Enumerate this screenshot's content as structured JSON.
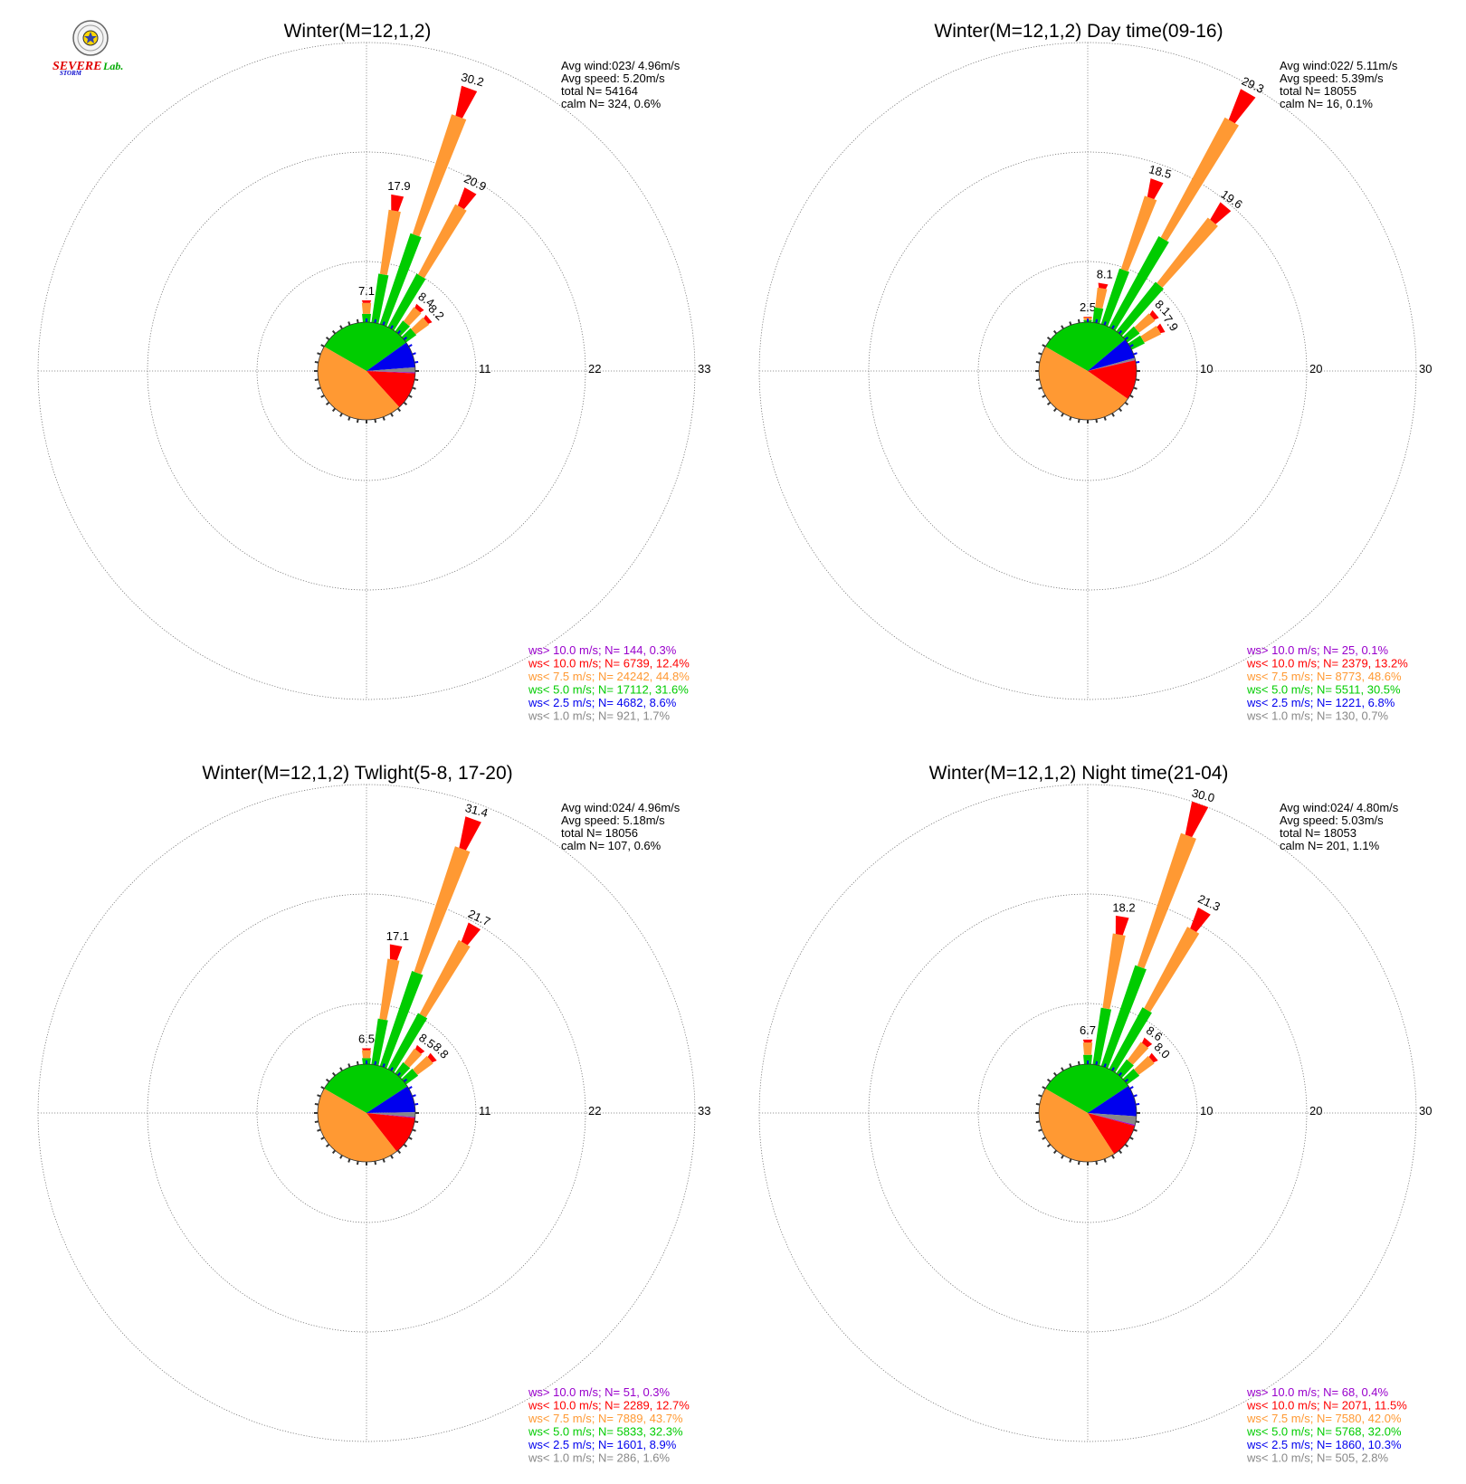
{
  "logo": {
    "word1": "SEVERE",
    "word2": "STORM",
    "word3": "Lab."
  },
  "colors": {
    "gt10": "#9900cc",
    "lt10": "#ff0000",
    "lt7_5": "#ff9933",
    "lt5": "#00cc00",
    "lt2_5": "#0000ee",
    "lt1": "#888888"
  },
  "chart_data": [
    {
      "type": "wind-rose",
      "title": "Winter(M=12,1,2)",
      "stats": [
        "Avg wind:023/ 4.96m/s",
        "Avg speed: 5.20m/s",
        "total N=      54164",
        "calm N=    324,   0.6%"
      ],
      "rings": [
        11,
        22,
        33
      ],
      "rlim": [
        0,
        33
      ],
      "bars": [
        {
          "dir": 0,
          "total": 7.1,
          "label": "7.1"
        },
        {
          "dir": 10,
          "total": 17.9,
          "label": "17.9"
        },
        {
          "dir": 20,
          "total": 30.2,
          "label": "30.2"
        },
        {
          "dir": 30,
          "total": 20.9,
          "label": "20.9"
        },
        {
          "dir": 40,
          "total": 8.4,
          "label": "8.4"
        },
        {
          "dir": 50,
          "total": 8.2,
          "label": "8.2"
        }
      ],
      "pie": [
        31.6,
        8.6,
        1.7,
        0.3,
        12.4,
        44.8
      ],
      "legend": [
        "ws> 10.0 m/s; N=   144,  0.3%",
        "ws< 10.0 m/s; N=  6739, 12.4%",
        "ws<  7.5 m/s; N= 24242, 44.8%",
        "ws<  5.0 m/s; N= 17112, 31.6%",
        "ws<  2.5 m/s; N=  4682,  8.6%",
        "ws<  1.0 m/s; N=   921,  1.7%"
      ]
    },
    {
      "type": "wind-rose",
      "title": "Winter(M=12,1,2) Day time(09-16)",
      "stats": [
        "Avg wind:022/ 5.11m/s",
        "Avg speed: 5.39m/s",
        "total N=      18055",
        "calm N=     16,   0.1%"
      ],
      "rings": [
        10,
        20,
        30
      ],
      "rlim": [
        0,
        30
      ],
      "bars": [
        {
          "dir": 0,
          "total": 2.5,
          "label": "2.5"
        },
        {
          "dir": 10,
          "total": 8.1,
          "label": "8.1"
        },
        {
          "dir": 20,
          "total": 18.5,
          "label": "18.5"
        },
        {
          "dir": 30,
          "total": 29.3,
          "label": "29.3"
        },
        {
          "dir": 40,
          "total": 19.6,
          "label": "19.6"
        },
        {
          "dir": 50,
          "total": 8.1,
          "label": "8.1"
        },
        {
          "dir": 60,
          "total": 7.9,
          "label": "7.9"
        }
      ],
      "pie": [
        30.5,
        6.8,
        0.7,
        0.1,
        13.2,
        48.6
      ],
      "legend": [
        "ws> 10.0 m/s; N=    25,  0.1%",
        "ws< 10.0 m/s; N=  2379, 13.2%",
        "ws<  7.5 m/s; N=  8773, 48.6%",
        "ws<  5.0 m/s; N=  5511, 30.5%",
        "ws<  2.5 m/s; N=  1221,  6.8%",
        "ws<  1.0 m/s; N=   130,  0.7%"
      ]
    },
    {
      "type": "wind-rose",
      "title": "Winter(M=12,1,2) Twlight(5-8, 17-20)",
      "stats": [
        "Avg wind:024/ 4.96m/s",
        "Avg speed: 5.18m/s",
        "total N=      18056",
        "calm N=    107,   0.6%"
      ],
      "rings": [
        11,
        22,
        33
      ],
      "rlim": [
        0,
        33
      ],
      "bars": [
        {
          "dir": 0,
          "total": 6.5,
          "label": "6.5"
        },
        {
          "dir": 10,
          "total": 17.1,
          "label": "17.1"
        },
        {
          "dir": 20,
          "total": 31.4,
          "label": "31.4"
        },
        {
          "dir": 30,
          "total": 21.7,
          "label": "21.7"
        },
        {
          "dir": 40,
          "total": 8.5,
          "label": "8.5"
        },
        {
          "dir": 50,
          "total": 8.8,
          "label": "8.8"
        }
      ],
      "pie": [
        32.3,
        8.9,
        1.6,
        0.3,
        12.7,
        43.7
      ],
      "legend": [
        "ws> 10.0 m/s; N=    51,  0.3%",
        "ws< 10.0 m/s; N=  2289, 12.7%",
        "ws<  7.5 m/s; N=  7889, 43.7%",
        "ws<  5.0 m/s; N=  5833, 32.3%",
        "ws<  2.5 m/s; N=  1601,  8.9%",
        "ws<  1.0 m/s; N=   286,  1.6%"
      ]
    },
    {
      "type": "wind-rose",
      "title": "Winter(M=12,1,2) Night time(21-04)",
      "stats": [
        "Avg wind:024/ 4.80m/s",
        "Avg speed: 5.03m/s",
        "total N=      18053",
        "calm N=    201,   1.1%"
      ],
      "rings": [
        10,
        20,
        30
      ],
      "rlim": [
        0,
        30
      ],
      "bars": [
        {
          "dir": 0,
          "total": 6.7,
          "label": "6.7"
        },
        {
          "dir": 10,
          "total": 18.2,
          "label": "18.2"
        },
        {
          "dir": 20,
          "total": 30.0,
          "label": "30.0"
        },
        {
          "dir": 30,
          "total": 21.3,
          "label": "21.3"
        },
        {
          "dir": 40,
          "total": 8.6,
          "label": "8.6"
        },
        {
          "dir": 50,
          "total": 8.0,
          "label": "8.0"
        }
      ],
      "pie": [
        32.0,
        10.3,
        2.8,
        0.4,
        11.5,
        42.0
      ],
      "legend": [
        "ws> 10.0 m/s; N=    68,  0.4%",
        "ws< 10.0 m/s; N=  2071, 11.5%",
        "ws<  7.5 m/s; N=  7580, 42.0%",
        "ws<  5.0 m/s; N=  5768, 32.0%",
        "ws<  2.5 m/s; N=  1860, 10.3%",
        "ws<  1.0 m/s; N=   505,  2.8%"
      ]
    }
  ]
}
